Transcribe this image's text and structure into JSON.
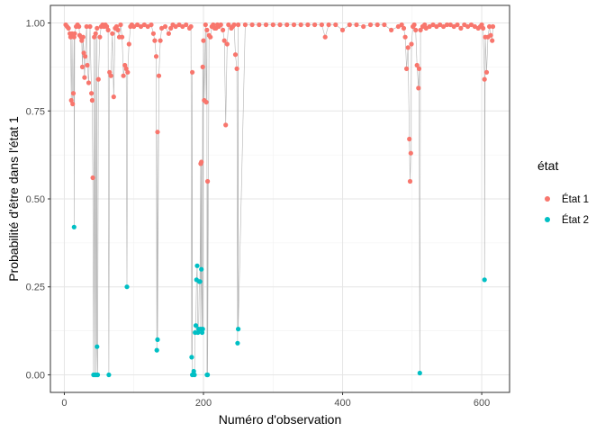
{
  "chart_data": {
    "type": "scatter",
    "title": "",
    "xlabel": "Numéro d'observation",
    "ylabel": "Probabilité d'être dans l'état 1",
    "xlim": [
      -20,
      640
    ],
    "ylim": [
      -0.05,
      1.05
    ],
    "x_ticks": [
      0,
      200,
      400,
      600
    ],
    "y_ticks": [
      0.0,
      0.25,
      0.5,
      0.75,
      1.0
    ],
    "x_tick_labels": [
      "0",
      "200",
      "400",
      "600"
    ],
    "y_tick_labels": [
      "0.00",
      "0.25",
      "0.50",
      "0.75",
      "1.00"
    ],
    "grid": true,
    "connecting_line": true,
    "legend": {
      "title": "état",
      "position": "right"
    },
    "series": [
      {
        "name": "État 1",
        "color": "#F8766D",
        "points": [
          [
            2,
            0.995
          ],
          [
            4,
            0.99
          ],
          [
            6,
            0.985
          ],
          [
            8,
            0.97
          ],
          [
            9,
            0.96
          ],
          [
            10,
            0.78
          ],
          [
            11,
            0.97
          ],
          [
            12,
            0.77
          ],
          [
            13,
            0.8
          ],
          [
            14,
            0.96
          ],
          [
            15,
            0.97
          ],
          [
            17,
            0.99
          ],
          [
            19,
            0.995
          ],
          [
            21,
            0.99
          ],
          [
            22,
            0.965
          ],
          [
            24,
            0.96
          ],
          [
            25,
            0.95
          ],
          [
            26,
            0.875
          ],
          [
            27,
            0.96
          ],
          [
            28,
            0.915
          ],
          [
            29,
            0.845
          ],
          [
            30,
            0.905
          ],
          [
            32,
            0.99
          ],
          [
            33,
            0.88
          ],
          [
            35,
            0.83
          ],
          [
            37,
            0.99
          ],
          [
            39,
            0.8
          ],
          [
            40,
            0.78
          ],
          [
            41,
            0.56
          ],
          [
            43,
            0.96
          ],
          [
            45,
            0.97
          ],
          [
            47,
            0.985
          ],
          [
            49,
            0.84
          ],
          [
            51,
            0.96
          ],
          [
            53,
            0.99
          ],
          [
            55,
            0.995
          ],
          [
            57,
            0.99
          ],
          [
            59,
            0.995
          ],
          [
            61,
            0.99
          ],
          [
            63,
            0.98
          ],
          [
            65,
            0.86
          ],
          [
            67,
            0.85
          ],
          [
            69,
            0.97
          ],
          [
            71,
            0.79
          ],
          [
            73,
            0.985
          ],
          [
            75,
            0.99
          ],
          [
            77,
            0.98
          ],
          [
            79,
            0.96
          ],
          [
            81,
            0.995
          ],
          [
            83,
            0.96
          ],
          [
            85,
            0.85
          ],
          [
            87,
            0.88
          ],
          [
            89,
            0.87
          ],
          [
            91,
            0.86
          ],
          [
            93,
            0.94
          ],
          [
            95,
            0.99
          ],
          [
            97,
            0.995
          ],
          [
            100,
            0.99
          ],
          [
            105,
            0.995
          ],
          [
            110,
            0.99
          ],
          [
            115,
            0.995
          ],
          [
            120,
            0.99
          ],
          [
            125,
            0.995
          ],
          [
            128,
            0.97
          ],
          [
            130,
            0.95
          ],
          [
            132,
            0.905
          ],
          [
            134,
            0.69
          ],
          [
            136,
            0.85
          ],
          [
            138,
            0.95
          ],
          [
            140,
            0.985
          ],
          [
            145,
            0.99
          ],
          [
            150,
            0.97
          ],
          [
            153,
            0.985
          ],
          [
            156,
            0.995
          ],
          [
            160,
            0.99
          ],
          [
            165,
            0.995
          ],
          [
            170,
            0.99
          ],
          [
            175,
            0.995
          ],
          [
            180,
            0.985
          ],
          [
            182,
            0.99
          ],
          [
            184,
            0.86
          ],
          [
            196,
            0.6
          ],
          [
            197,
            0.605
          ],
          [
            199,
            0.875
          ],
          [
            200,
            0.95
          ],
          [
            201,
            0.78
          ],
          [
            203,
            0.995
          ],
          [
            204,
            0.775
          ],
          [
            205,
            0.98
          ],
          [
            206,
            0.55
          ],
          [
            208,
            0.965
          ],
          [
            210,
            0.96
          ],
          [
            212,
            0.99
          ],
          [
            214,
            0.995
          ],
          [
            216,
            0.985
          ],
          [
            218,
            0.985
          ],
          [
            220,
            0.995
          ],
          [
            222,
            0.99
          ],
          [
            225,
            0.995
          ],
          [
            228,
            0.98
          ],
          [
            230,
            0.95
          ],
          [
            232,
            0.71
          ],
          [
            234,
            0.94
          ],
          [
            236,
            0.995
          ],
          [
            240,
            0.985
          ],
          [
            242,
            0.99
          ],
          [
            244,
            0.995
          ],
          [
            246,
            0.91
          ],
          [
            248,
            0.87
          ],
          [
            250,
            0.995
          ],
          [
            260,
            0.995
          ],
          [
            270,
            0.995
          ],
          [
            280,
            0.995
          ],
          [
            290,
            0.995
          ],
          [
            300,
            0.995
          ],
          [
            310,
            0.995
          ],
          [
            320,
            0.995
          ],
          [
            330,
            0.995
          ],
          [
            340,
            0.995
          ],
          [
            350,
            0.995
          ],
          [
            360,
            0.995
          ],
          [
            370,
            0.995
          ],
          [
            375,
            0.96
          ],
          [
            380,
            0.995
          ],
          [
            390,
            0.995
          ],
          [
            400,
            0.98
          ],
          [
            410,
            0.995
          ],
          [
            420,
            0.995
          ],
          [
            430,
            0.99
          ],
          [
            440,
            0.995
          ],
          [
            450,
            0.995
          ],
          [
            460,
            0.995
          ],
          [
            470,
            0.98
          ],
          [
            480,
            0.99
          ],
          [
            485,
            0.995
          ],
          [
            488,
            0.985
          ],
          [
            490,
            0.96
          ],
          [
            492,
            0.87
          ],
          [
            494,
            0.93
          ],
          [
            496,
            0.67
          ],
          [
            497,
            0.55
          ],
          [
            498,
            0.63
          ],
          [
            499,
            0.94
          ],
          [
            501,
            0.99
          ],
          [
            503,
            0.995
          ],
          [
            505,
            0.98
          ],
          [
            507,
            0.88
          ],
          [
            509,
            0.815
          ],
          [
            510,
            0.87
          ],
          [
            512,
            0.98
          ],
          [
            515,
            0.99
          ],
          [
            518,
            0.995
          ],
          [
            520,
            0.985
          ],
          [
            525,
            0.99
          ],
          [
            530,
            0.995
          ],
          [
            535,
            0.99
          ],
          [
            540,
            0.995
          ],
          [
            545,
            0.99
          ],
          [
            550,
            0.995
          ],
          [
            555,
            0.995
          ],
          [
            560,
            0.99
          ],
          [
            565,
            0.995
          ],
          [
            570,
            0.985
          ],
          [
            575,
            0.995
          ],
          [
            580,
            0.99
          ],
          [
            585,
            0.995
          ],
          [
            590,
            0.99
          ],
          [
            595,
            0.985
          ],
          [
            598,
            0.99
          ],
          [
            600,
            0.995
          ],
          [
            602,
            0.985
          ],
          [
            604,
            0.84
          ],
          [
            605,
            0.96
          ],
          [
            607,
            0.86
          ],
          [
            609,
            0.96
          ],
          [
            611,
            0.99
          ],
          [
            613,
            0.965
          ],
          [
            615,
            0.95
          ],
          [
            616,
            0.99
          ]
        ]
      },
      {
        "name": "État 2",
        "color": "#00BFC4",
        "points": [
          [
            14,
            0.42
          ],
          [
            42,
            0.0
          ],
          [
            44,
            0.0
          ],
          [
            46,
            0.0
          ],
          [
            47,
            0.08
          ],
          [
            48,
            0.0
          ],
          [
            64,
            0.0
          ],
          [
            90,
            0.25
          ],
          [
            133,
            0.07
          ],
          [
            134,
            0.1
          ],
          [
            183,
            0.05
          ],
          [
            184,
            0.0
          ],
          [
            186,
            0.01
          ],
          [
            187,
            0.0
          ],
          [
            188,
            0.12
          ],
          [
            189,
            0.14
          ],
          [
            190,
            0.27
          ],
          [
            191,
            0.31
          ],
          [
            192,
            0.12
          ],
          [
            193,
            0.13
          ],
          [
            194,
            0.265
          ],
          [
            195,
            0.265
          ],
          [
            196,
            0.13
          ],
          [
            197,
            0.3
          ],
          [
            198,
            0.12
          ],
          [
            199,
            0.13
          ],
          [
            205,
            0.0
          ],
          [
            206,
            0.0
          ],
          [
            249,
            0.09
          ],
          [
            250,
            0.13
          ],
          [
            511,
            0.005
          ],
          [
            604,
            0.27
          ]
        ]
      }
    ]
  }
}
